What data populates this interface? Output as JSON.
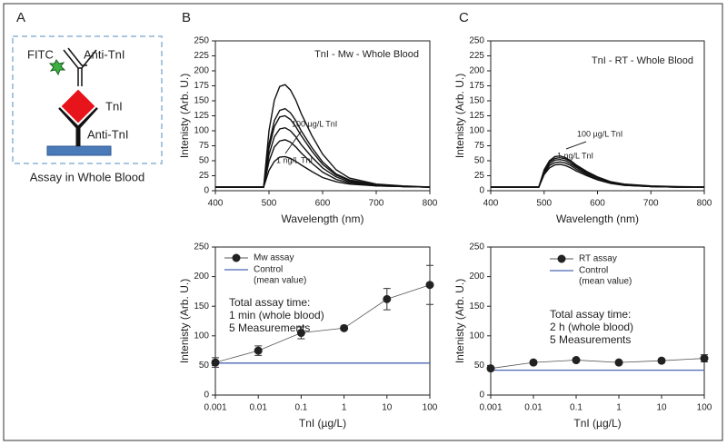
{
  "panel_labels": [
    "A",
    "B",
    "C"
  ],
  "diagram": {
    "fitc": "FITC",
    "antibody_top": "Anti-TnI",
    "antigen": "TnI",
    "antibody_bottom": "Anti-TnI",
    "caption": "Assay in Whole Blood"
  },
  "chart_data": [
    {
      "type": "line",
      "title": "TnI - Mw - Whole Blood",
      "x_label": "Wavelength (nm)",
      "y_label": "Intenisty (Arb. U.)",
      "x": [
        400,
        450,
        480,
        490,
        500,
        510,
        520,
        530,
        540,
        550,
        560,
        580,
        600,
        625,
        650,
        700,
        750,
        800
      ],
      "series": [
        {
          "color": "#111111",
          "values": [
            6,
            6,
            6,
            6,
            100,
            151,
            174,
            177,
            168,
            151,
            129,
            92,
            61,
            35,
            21,
            11,
            8,
            6
          ]
        },
        {
          "color": "#111111",
          "values": [
            6,
            6,
            6,
            6,
            78,
            117,
            134,
            137,
            130,
            117,
            100,
            72,
            48,
            28,
            18,
            10,
            7,
            6
          ]
        },
        {
          "color": "#111111",
          "values": [
            6,
            6,
            6,
            6,
            71,
            107,
            123,
            125,
            119,
            107,
            92,
            66,
            44,
            26,
            17,
            10,
            7,
            6
          ]
        },
        {
          "color": "#111111",
          "values": [
            6,
            6,
            6,
            6,
            60,
            90,
            103,
            105,
            100,
            90,
            77,
            56,
            38,
            23,
            15,
            9,
            7,
            6
          ]
        },
        {
          "color": "#111111",
          "values": [
            6,
            6,
            6,
            6,
            49,
            73,
            83,
            85,
            81,
            73,
            63,
            46,
            31,
            19,
            13,
            8,
            7,
            6
          ]
        },
        {
          "color": "#111111",
          "values": [
            6,
            6,
            6,
            6,
            34,
            49,
            56,
            57,
            54,
            49,
            43,
            32,
            22,
            15,
            11,
            8,
            7,
            6
          ]
        }
      ],
      "xlim": [
        400,
        800
      ],
      "xticks": [
        400,
        500,
        600,
        700,
        800
      ],
      "ylim": [
        0,
        250
      ],
      "yticks": [
        0,
        25,
        50,
        75,
        100,
        125,
        150,
        175,
        200,
        225,
        250
      ],
      "annotations": [
        "100 µg/L TnI",
        "1 ng/L TnI"
      ]
    },
    {
      "type": "line",
      "title": "TnI - RT - Whole Blood",
      "x_label": "Wavelength (nm)",
      "y_label": "Intenisty (Arb. U.)",
      "x": [
        400,
        450,
        480,
        490,
        500,
        510,
        520,
        530,
        540,
        550,
        560,
        580,
        600,
        625,
        650,
        700,
        750,
        800
      ],
      "series": [
        {
          "color": "#111111",
          "values": [
            6,
            6,
            6,
            6,
            35,
            50,
            57,
            58,
            55,
            50,
            43,
            32,
            23,
            15,
            11,
            8,
            7,
            6
          ]
        },
        {
          "color": "#111111",
          "values": [
            6,
            6,
            6,
            6,
            33,
            48,
            54,
            55,
            53,
            48,
            41,
            31,
            22,
            14,
            10,
            7,
            6,
            6
          ]
        },
        {
          "color": "#111111",
          "values": [
            6,
            6,
            6,
            6,
            31,
            45,
            51,
            52,
            50,
            45,
            39,
            29,
            21,
            14,
            10,
            7,
            6,
            6
          ]
        },
        {
          "color": "#111111",
          "values": [
            6,
            6,
            6,
            6,
            29,
            42,
            47,
            48,
            46,
            42,
            36,
            27,
            19,
            13,
            9,
            7,
            6,
            6
          ]
        },
        {
          "color": "#111111",
          "values": [
            6,
            6,
            6,
            6,
            27,
            38,
            43,
            44,
            42,
            38,
            33,
            25,
            18,
            12,
            9,
            7,
            6,
            6
          ]
        }
      ],
      "xlim": [
        400,
        800
      ],
      "xticks": [
        400,
        500,
        600,
        700,
        800
      ],
      "ylim": [
        0,
        250
      ],
      "yticks": [
        0,
        25,
        50,
        75,
        100,
        125,
        150,
        175,
        200,
        225,
        250
      ],
      "annotations": [
        "100 µg/L TnI",
        "1 ng/L TnI"
      ]
    },
    {
      "type": "scatter",
      "x_label": "TnI (µg/L)",
      "y_label": "Intenisty (Arb. U.)",
      "x_log": true,
      "x": [
        0.001,
        0.01,
        0.1,
        1,
        10,
        100
      ],
      "series": [
        {
          "name": "Mw assay",
          "color": "#222222",
          "values": [
            55,
            75,
            105,
            113,
            162,
            186
          ],
          "errors": [
            8,
            8,
            10,
            3,
            18,
            33
          ]
        }
      ],
      "control": {
        "name": "Control",
        "note": "(mean value)",
        "value": 54,
        "color": "#4a66b5"
      },
      "xlim": [
        0.001,
        100
      ],
      "xticks": [
        0.001,
        0.01,
        0.1,
        1,
        10,
        100
      ],
      "ylim": [
        0,
        250
      ],
      "yticks": [
        0,
        50,
        100,
        150,
        200,
        250
      ],
      "annotations": [
        "Total assay time:",
        "1 min (whole blood)",
        "5 Measurements"
      ]
    },
    {
      "type": "scatter",
      "x_label": "TnI (µg/L)",
      "y_label": "Intenisty (Arb. U.)",
      "x_log": true,
      "x": [
        0.001,
        0.01,
        0.1,
        1,
        10,
        100
      ],
      "series": [
        {
          "name": "RT assay",
          "color": "#222222",
          "values": [
            45,
            55,
            59,
            55,
            58,
            62
          ],
          "errors": [
            2,
            3,
            3,
            2,
            3,
            6
          ]
        }
      ],
      "control": {
        "name": "Control",
        "note": "(mean value)",
        "value": 42,
        "color": "#4a66b5"
      },
      "xlim": [
        0.001,
        100
      ],
      "xticks": [
        0.001,
        0.01,
        0.1,
        1,
        10,
        100
      ],
      "ylim": [
        0,
        250
      ],
      "yticks": [
        0,
        50,
        100,
        150,
        200,
        250
      ],
      "annotations": [
        "Total assay time:",
        "2 h (whole blood)",
        "5 Measurements"
      ]
    }
  ]
}
